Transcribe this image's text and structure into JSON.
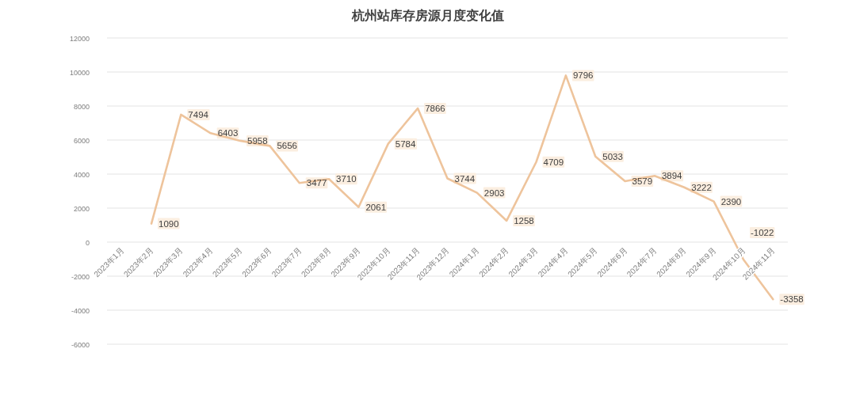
{
  "chart_data": {
    "type": "line",
    "title": "杭州站库存房源月度变化值",
    "categories": [
      "2023年1月",
      "2023年2月",
      "2023年3月",
      "2023年4月",
      "2023年5月",
      "2023年6月",
      "2023年7月",
      "2023年8月",
      "2023年9月",
      "2023年10月",
      "2023年11月",
      "2023年12月",
      "2024年1月",
      "2024年2月",
      "2024年3月",
      "2024年4月",
      "2024年5月",
      "2024年6月",
      "2024年7月",
      "2024年8月",
      "2024年9月",
      "2024年10月",
      "2024年11月"
    ],
    "values": [
      null,
      1090,
      7494,
      6403,
      5958,
      5656,
      3477,
      3710,
      2061,
      5784,
      7866,
      3744,
      2903,
      1258,
      4709,
      9796,
      5033,
      3579,
      3894,
      3222,
      2390,
      -1022,
      -3358
    ],
    "color": "#eec49c",
    "ylim": [
      -6000,
      12000
    ],
    "yticks": [
      -6000,
      -4000,
      -2000,
      0,
      2000,
      4000,
      6000,
      8000,
      10000,
      12000
    ],
    "grid": "y",
    "marker": "none",
    "line_style": "solid",
    "data_labels": true
  }
}
